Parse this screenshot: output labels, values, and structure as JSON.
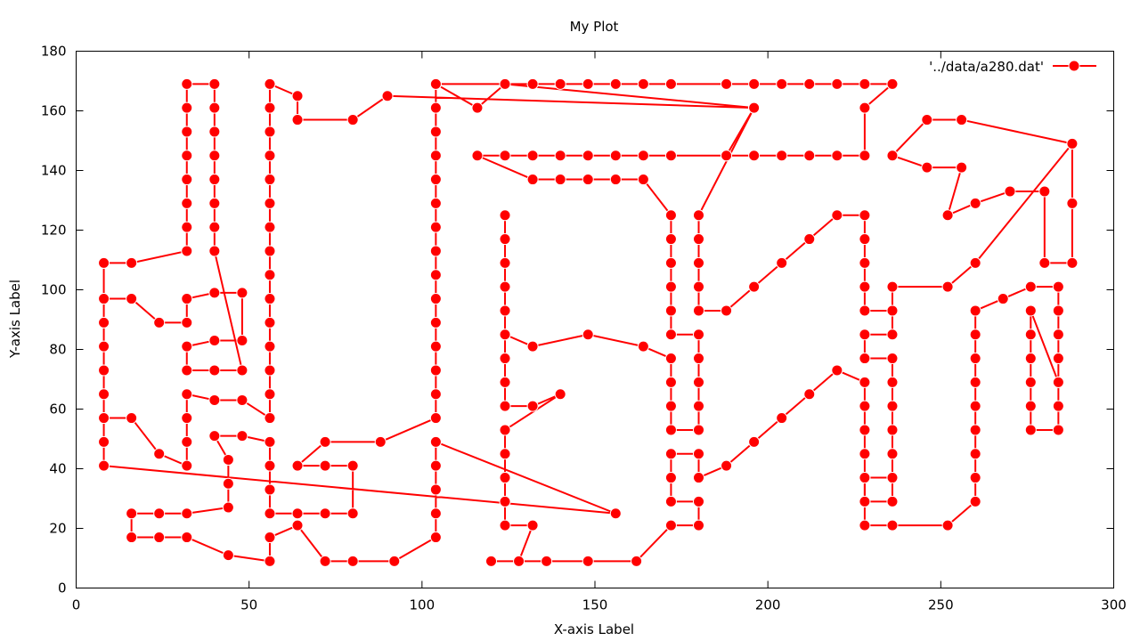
{
  "chart_data": {
    "type": "line",
    "title": "My Plot",
    "xlabel": "X-axis Label",
    "ylabel": "Y-axis Label",
    "xlim": [
      0,
      300
    ],
    "ylim": [
      0,
      180
    ],
    "xticks": [
      0,
      50,
      100,
      150,
      200,
      250,
      300
    ],
    "yticks": [
      0,
      20,
      40,
      60,
      80,
      100,
      120,
      140,
      160,
      180
    ],
    "grid": false,
    "legend_position": "top-right",
    "series": [
      {
        "name": "'../data/a280.dat'",
        "color": "#ff0000",
        "marker": "circle",
        "points": [
          [
            288,
            149
          ],
          [
            288,
            129
          ],
          [
            288,
            109
          ],
          [
            280,
            109
          ],
          [
            280,
            133
          ],
          [
            270,
            133
          ],
          [
            260,
            129
          ],
          [
            252,
            125
          ],
          [
            256,
            141
          ],
          [
            246,
            141
          ],
          [
            236,
            145
          ],
          [
            246,
            157
          ],
          [
            256,
            157
          ],
          [
            288,
            149
          ],
          [
            260,
            109
          ],
          [
            252,
            101
          ],
          [
            236,
            101
          ],
          [
            236,
            93
          ],
          [
            228,
            93
          ],
          [
            228,
            101
          ],
          [
            228,
            109
          ],
          [
            228,
            117
          ],
          [
            228,
            125
          ],
          [
            220,
            125
          ],
          [
            212,
            117
          ],
          [
            204,
            109
          ],
          [
            196,
            101
          ],
          [
            188,
            93
          ],
          [
            180,
            93
          ],
          [
            180,
            101
          ],
          [
            180,
            109
          ],
          [
            180,
            117
          ],
          [
            180,
            125
          ],
          [
            196,
            161
          ],
          [
            124,
            169
          ],
          [
            104,
            169
          ],
          [
            104,
            161
          ],
          [
            104,
            153
          ],
          [
            104,
            145
          ],
          [
            104,
            137
          ],
          [
            104,
            129
          ],
          [
            104,
            121
          ],
          [
            104,
            113
          ],
          [
            104,
            105
          ],
          [
            104,
            97
          ],
          [
            104,
            89
          ],
          [
            104,
            81
          ],
          [
            104,
            73
          ],
          [
            104,
            65
          ],
          [
            104,
            57
          ],
          [
            88,
            49
          ],
          [
            72,
            49
          ],
          [
            64,
            41
          ],
          [
            72,
            41
          ],
          [
            80,
            41
          ],
          [
            80,
            25
          ],
          [
            72,
            25
          ],
          [
            64,
            25
          ],
          [
            56,
            25
          ],
          [
            56,
            33
          ],
          [
            56,
            41
          ],
          [
            56,
            49
          ],
          [
            48,
            51
          ],
          [
            40,
            51
          ],
          [
            44,
            43
          ],
          [
            44,
            35
          ],
          [
            44,
            27
          ],
          [
            32,
            25
          ],
          [
            24,
            25
          ],
          [
            16,
            25
          ],
          [
            16,
            17
          ],
          [
            24,
            17
          ],
          [
            32,
            17
          ],
          [
            44,
            11
          ],
          [
            56,
            9
          ],
          [
            56,
            17
          ],
          [
            64,
            21
          ],
          [
            72,
            9
          ],
          [
            80,
            9
          ],
          [
            92,
            9
          ],
          [
            104,
            17
          ],
          [
            104,
            25
          ],
          [
            104,
            33
          ],
          [
            104,
            41
          ],
          [
            104,
            49
          ],
          [
            156,
            25
          ],
          [
            8,
            41
          ],
          [
            8,
            49
          ],
          [
            8,
            57
          ],
          [
            16,
            57
          ],
          [
            24,
            45
          ],
          [
            32,
            41
          ],
          [
            32,
            49
          ],
          [
            32,
            57
          ],
          [
            32,
            65
          ],
          [
            40,
            63
          ],
          [
            48,
            63
          ],
          [
            56,
            57
          ],
          [
            56,
            65
          ],
          [
            56,
            73
          ],
          [
            56,
            81
          ],
          [
            56,
            89
          ],
          [
            56,
            97
          ],
          [
            56,
            105
          ],
          [
            56,
            113
          ],
          [
            56,
            121
          ],
          [
            56,
            129
          ],
          [
            56,
            137
          ],
          [
            56,
            145
          ],
          [
            56,
            153
          ],
          [
            56,
            161
          ],
          [
            56,
            169
          ],
          [
            64,
            165
          ],
          [
            64,
            157
          ],
          [
            80,
            157
          ],
          [
            90,
            165
          ],
          [
            196,
            161
          ],
          [
            180,
            125
          ],
          [
            196,
            161
          ]
        ]
      },
      {
        "name": "",
        "color": "#ff0000",
        "marker": "circle",
        "points": [
          [
            196,
            161
          ],
          [
            188,
            145
          ],
          [
            196,
            145
          ],
          [
            204,
            145
          ],
          [
            212,
            145
          ],
          [
            220,
            145
          ],
          [
            228,
            145
          ],
          [
            228,
            161
          ],
          [
            236,
            169
          ],
          [
            228,
            169
          ],
          [
            220,
            169
          ],
          [
            212,
            169
          ],
          [
            204,
            169
          ],
          [
            196,
            169
          ],
          [
            188,
            169
          ],
          [
            172,
            169
          ],
          [
            164,
            169
          ],
          [
            156,
            169
          ],
          [
            148,
            169
          ],
          [
            140,
            169
          ],
          [
            132,
            169
          ],
          [
            124,
            169
          ],
          [
            116,
            161
          ],
          [
            104,
            169
          ]
        ]
      },
      {
        "name": "",
        "color": "#ff0000",
        "marker": "circle",
        "points": [
          [
            188,
            145
          ],
          [
            172,
            145
          ],
          [
            164,
            145
          ],
          [
            156,
            145
          ],
          [
            148,
            145
          ],
          [
            140,
            145
          ],
          [
            132,
            145
          ],
          [
            124,
            145
          ],
          [
            116,
            145
          ],
          [
            132,
            137
          ],
          [
            140,
            137
          ],
          [
            148,
            137
          ],
          [
            156,
            137
          ],
          [
            164,
            137
          ],
          [
            172,
            125
          ],
          [
            172,
            117
          ],
          [
            172,
            109
          ],
          [
            172,
            101
          ],
          [
            172,
            93
          ],
          [
            172,
            85
          ],
          [
            180,
            85
          ],
          [
            180,
            77
          ],
          [
            180,
            69
          ],
          [
            180,
            61
          ],
          [
            180,
            53
          ],
          [
            172,
            53
          ],
          [
            172,
            61
          ],
          [
            172,
            69
          ],
          [
            172,
            77
          ],
          [
            164,
            81
          ],
          [
            148,
            85
          ],
          [
            132,
            81
          ],
          [
            124,
            85
          ],
          [
            124,
            93
          ],
          [
            124,
            101
          ],
          [
            124,
            109
          ],
          [
            124,
            117
          ],
          [
            124,
            125
          ]
        ]
      },
      {
        "name": "",
        "color": "#ff0000",
        "marker": "circle",
        "points": [
          [
            124,
            85
          ],
          [
            124,
            77
          ],
          [
            124,
            69
          ],
          [
            124,
            61
          ],
          [
            132,
            61
          ],
          [
            140,
            65
          ],
          [
            124,
            53
          ],
          [
            124,
            45
          ],
          [
            124,
            37
          ],
          [
            124,
            29
          ],
          [
            124,
            21
          ],
          [
            132,
            21
          ],
          [
            128,
            9
          ],
          [
            120,
            9
          ],
          [
            136,
            9
          ],
          [
            148,
            9
          ],
          [
            162,
            9
          ],
          [
            172,
            21
          ],
          [
            180,
            21
          ],
          [
            180,
            29
          ],
          [
            172,
            29
          ],
          [
            172,
            37
          ],
          [
            172,
            45
          ],
          [
            180,
            45
          ],
          [
            180,
            37
          ],
          [
            188,
            41
          ],
          [
            196,
            49
          ],
          [
            204,
            57
          ],
          [
            212,
            65
          ],
          [
            220,
            73
          ],
          [
            228,
            69
          ],
          [
            228,
            61
          ],
          [
            228,
            53
          ],
          [
            228,
            45
          ],
          [
            228,
            37
          ],
          [
            228,
            29
          ],
          [
            228,
            21
          ],
          [
            236,
            21
          ],
          [
            252,
            21
          ],
          [
            260,
            29
          ],
          [
            260,
            37
          ],
          [
            260,
            45
          ],
          [
            260,
            53
          ],
          [
            260,
            61
          ],
          [
            260,
            69
          ],
          [
            260,
            77
          ],
          [
            260,
            85
          ],
          [
            260,
            93
          ],
          [
            268,
            97
          ],
          [
            276,
            101
          ],
          [
            284,
            101
          ],
          [
            284,
            93
          ],
          [
            284,
            85
          ],
          [
            284,
            77
          ],
          [
            284,
            69
          ],
          [
            284,
            61
          ],
          [
            284,
            53
          ],
          [
            276,
            53
          ],
          [
            276,
            61
          ],
          [
            276,
            69
          ],
          [
            276,
            77
          ],
          [
            276,
            85
          ],
          [
            276,
            93
          ],
          [
            284,
            69
          ]
        ]
      },
      {
        "name": "",
        "color": "#ff0000",
        "marker": "circle",
        "points": [
          [
            236,
            93
          ],
          [
            236,
            85
          ],
          [
            228,
            85
          ],
          [
            228,
            77
          ],
          [
            236,
            77
          ],
          [
            236,
            69
          ],
          [
            236,
            61
          ],
          [
            236,
            53
          ],
          [
            236,
            45
          ],
          [
            236,
            37
          ],
          [
            236,
            29
          ],
          [
            228,
            29
          ],
          [
            228,
            37
          ],
          [
            236,
            37
          ]
        ]
      },
      {
        "name": "",
        "color": "#ff0000",
        "marker": "circle",
        "points": [
          [
            8,
            109
          ],
          [
            16,
            109
          ],
          [
            32,
            113
          ],
          [
            32,
            121
          ],
          [
            32,
            129
          ],
          [
            32,
            137
          ],
          [
            32,
            145
          ],
          [
            32,
            153
          ],
          [
            32,
            161
          ],
          [
            32,
            169
          ],
          [
            40,
            169
          ],
          [
            40,
            161
          ],
          [
            40,
            153
          ],
          [
            40,
            145
          ],
          [
            40,
            137
          ],
          [
            40,
            129
          ],
          [
            40,
            121
          ],
          [
            40,
            113
          ],
          [
            48,
            73
          ],
          [
            40,
            73
          ],
          [
            32,
            73
          ],
          [
            32,
            81
          ],
          [
            40,
            83
          ],
          [
            48,
            83
          ],
          [
            48,
            99
          ],
          [
            40,
            99
          ],
          [
            32,
            97
          ],
          [
            32,
            89
          ],
          [
            24,
            89
          ],
          [
            16,
            97
          ],
          [
            8,
            97
          ],
          [
            8,
            89
          ],
          [
            8,
            81
          ],
          [
            8,
            73
          ],
          [
            8,
            65
          ],
          [
            8,
            57
          ]
        ]
      },
      {
        "name": "",
        "color": "#ff0000",
        "marker": "circle",
        "points": [
          [
            8,
            109
          ],
          [
            8,
            97
          ]
        ]
      }
    ]
  }
}
